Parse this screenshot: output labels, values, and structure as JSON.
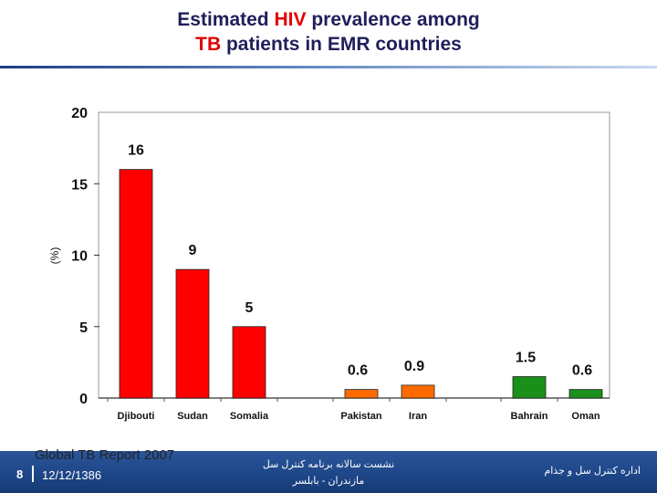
{
  "title": {
    "line1_pre": "Estimated ",
    "line1_hl": "HIV",
    "line1_post": " prevalence among",
    "line2_hl": "TB",
    "line2_post": " patients in EMR countries"
  },
  "colors": {
    "title_text": "#1f1f5c",
    "highlight": "#e00000",
    "red_bar": "#ff0000",
    "orange_bar": "#ff6a00",
    "green_bar": "#1a8f1a",
    "footer": "#1e4789"
  },
  "chart_data": {
    "type": "bar",
    "ylabel": "(%)",
    "ylim": [
      0,
      20
    ],
    "yticks": [
      "0",
      "5",
      "10",
      "15",
      "20"
    ],
    "categories": [
      "Djibouti",
      "Sudan",
      "Somalia",
      "Pakistan",
      "Iran",
      "Bahrain",
      "Oman"
    ],
    "values": [
      16,
      9,
      5,
      0.6,
      0.9,
      1.5,
      0.6
    ],
    "value_labels": [
      "16",
      "9",
      "5",
      "0.6",
      "0.9",
      "1.5",
      "0.6"
    ],
    "bar_colors": [
      "#ff0000",
      "#ff0000",
      "#ff0000",
      "#ff6a00",
      "#ff6a00",
      "#1a8f1a",
      "#1a8f1a"
    ],
    "grid": false
  },
  "footer": {
    "source": "Global TB Report 2007",
    "page": "8",
    "date": "12/12/1386",
    "center_line1": "نشست سالانه برنامه کنترل سل",
    "center_line2": "مازندران - بابلسر",
    "right": "اداره کنترل سل و جذام"
  }
}
